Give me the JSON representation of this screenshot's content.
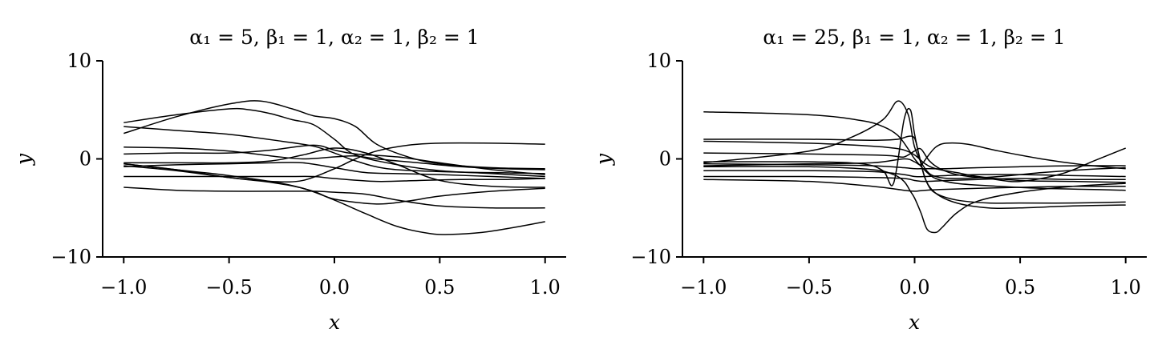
{
  "chart_data": [
    {
      "type": "line",
      "title": "α₁ = 5,  β₁ = 1,  α₂ = 1,  β₂ = 1",
      "xlabel": "x",
      "ylabel": "y",
      "xlim": [
        -1.1,
        1.1
      ],
      "ylim": [
        -10,
        10
      ],
      "xticks": [
        -1.0,
        -0.5,
        0.0,
        0.5,
        1.0
      ],
      "xtick_labels": [
        "−1.0",
        "−0.5",
        "0.0",
        "0.5",
        "1.0"
      ],
      "yticks": [
        -10,
        0,
        10
      ],
      "ytick_labels": [
        "−10",
        "0",
        "10"
      ],
      "line_color": "#000000",
      "series": [
        {
          "x": [
            -1.0,
            -0.75,
            -0.5,
            -0.4,
            -0.3,
            -0.2,
            -0.1,
            0.0,
            0.1,
            0.3,
            0.5,
            0.75,
            1.0
          ],
          "y": [
            3.7,
            4.5,
            5.1,
            5.0,
            4.6,
            4.0,
            3.5,
            2.0,
            0.4,
            -0.6,
            -1.2,
            -1.5,
            -1.8
          ]
        },
        {
          "x": [
            -1.0,
            -0.75,
            -0.5,
            -0.35,
            -0.2,
            -0.1,
            0.0,
            0.1,
            0.2,
            0.35,
            0.5,
            0.75,
            1.0
          ],
          "y": [
            2.6,
            4.3,
            5.6,
            5.9,
            5.1,
            4.4,
            4.1,
            3.3,
            1.5,
            0.2,
            -0.5,
            -0.9,
            -1.0
          ]
        },
        {
          "x": [
            -1.0,
            -0.75,
            -0.5,
            -0.25,
            -0.1,
            0.0,
            0.1,
            0.25,
            0.5,
            0.75,
            1.0
          ],
          "y": [
            3.3,
            2.9,
            2.5,
            1.8,
            1.3,
            0.6,
            -0.2,
            -1.0,
            -1.3,
            -1.4,
            -1.5
          ]
        },
        {
          "x": [
            -1.0,
            -0.75,
            -0.5,
            -0.3,
            -0.15,
            0.0,
            0.1,
            0.2,
            0.4,
            0.6,
            0.8,
            1.0
          ],
          "y": [
            1.2,
            1.1,
            0.8,
            0.3,
            0.0,
            0.2,
            0.3,
            0.0,
            -0.4,
            -0.8,
            -1.0,
            -1.1
          ]
        },
        {
          "x": [
            -1.0,
            -0.75,
            -0.5,
            -0.3,
            -0.1,
            0.0,
            0.1,
            0.3,
            0.5,
            0.75,
            1.0
          ],
          "y": [
            0.5,
            0.6,
            0.6,
            0.9,
            1.4,
            0.9,
            0.5,
            0.2,
            -0.4,
            -1.1,
            -1.6
          ]
        },
        {
          "x": [
            -1.0,
            -0.75,
            -0.5,
            -0.3,
            -0.15,
            0.0,
            0.15,
            0.3,
            0.5,
            0.75,
            1.0
          ],
          "y": [
            -0.4,
            -0.4,
            -0.4,
            -0.2,
            0.4,
            1.1,
            0.6,
            -0.6,
            -2.2,
            -2.8,
            -2.9
          ]
        },
        {
          "x": [
            -1.0,
            -0.75,
            -0.5,
            -0.3,
            -0.15,
            0.0,
            0.15,
            0.3,
            0.5,
            0.75,
            1.0
          ],
          "y": [
            -0.8,
            -0.6,
            -0.5,
            -0.4,
            -0.4,
            -0.9,
            -1.4,
            -1.5,
            -1.6,
            -1.8,
            -2.0
          ]
        },
        {
          "x": [
            -1.0,
            -0.75,
            -0.5,
            -0.3,
            -0.15,
            0.0,
            0.1,
            0.2,
            0.35,
            0.5,
            0.75,
            1.0
          ],
          "y": [
            -0.7,
            -1.2,
            -1.9,
            -2.3,
            -2.2,
            -1.0,
            0.0,
            0.8,
            1.4,
            1.6,
            1.6,
            1.5
          ]
        },
        {
          "x": [
            -1.0,
            -0.75,
            -0.5,
            -0.25,
            -0.1,
            0.0,
            0.2,
            0.4,
            0.6,
            0.8,
            1.0
          ],
          "y": [
            -1.8,
            -1.8,
            -1.8,
            -1.8,
            -1.8,
            -2.0,
            -2.3,
            -2.2,
            -2.1,
            -2.1,
            -2.0
          ]
        },
        {
          "x": [
            -1.0,
            -0.75,
            -0.5,
            -0.25,
            -0.1,
            0.0,
            0.2,
            0.35,
            0.5,
            0.75,
            1.0
          ],
          "y": [
            -0.5,
            -1.1,
            -1.7,
            -2.5,
            -3.3,
            -4.1,
            -4.6,
            -4.3,
            -3.8,
            -3.3,
            -3.0
          ]
        },
        {
          "x": [
            -1.0,
            -0.75,
            -0.5,
            -0.25,
            -0.1,
            0.0,
            0.15,
            0.3,
            0.5,
            0.75,
            1.0
          ],
          "y": [
            -2.9,
            -3.2,
            -3.3,
            -3.3,
            -3.3,
            -3.4,
            -3.6,
            -4.2,
            -4.8,
            -5.0,
            -5.0
          ]
        },
        {
          "x": [
            -1.0,
            -0.75,
            -0.5,
            -0.3,
            -0.15,
            0.0,
            0.15,
            0.3,
            0.45,
            0.55,
            0.7,
            0.85,
            1.0
          ],
          "y": [
            -0.5,
            -1.1,
            -1.9,
            -2.4,
            -3.0,
            -4.2,
            -5.6,
            -6.9,
            -7.6,
            -7.7,
            -7.5,
            -7.0,
            -6.4
          ]
        }
      ]
    },
    {
      "type": "line",
      "title": "α₁ = 25,  β₁ = 1,  α₂ = 1,  β₂ = 1",
      "xlabel": "x",
      "ylabel": "y",
      "xlim": [
        -1.1,
        1.1
      ],
      "ylim": [
        -10,
        10
      ],
      "xticks": [
        -1.0,
        -0.5,
        0.0,
        0.5,
        1.0
      ],
      "xtick_labels": [
        "−1.0",
        "−0.5",
        "0.0",
        "0.5",
        "1.0"
      ],
      "yticks": [
        -10,
        0,
        10
      ],
      "ytick_labels": [
        "−10",
        "0",
        "10"
      ],
      "line_color": "#000000",
      "series": [
        {
          "x": [
            -1.0,
            -0.5,
            -0.25,
            -0.15,
            -0.08,
            -0.03,
            0.0,
            0.05,
            0.1,
            0.2,
            0.4,
            0.6,
            0.8,
            1.0
          ],
          "y": [
            4.8,
            4.5,
            3.9,
            3.3,
            2.4,
            1.0,
            0.0,
            -1.2,
            -2.0,
            -2.5,
            -2.8,
            -3.0,
            -3.1,
            -3.2
          ]
        },
        {
          "x": [
            -1.0,
            -0.5,
            -0.3,
            -0.15,
            -0.08,
            -0.03,
            0.0,
            0.05,
            0.1,
            0.2,
            0.4,
            0.6,
            0.8,
            1.0
          ],
          "y": [
            -0.4,
            0.8,
            2.2,
            4.0,
            5.9,
            4.5,
            1.2,
            -1.0,
            -1.8,
            -2.0,
            -1.8,
            -1.4,
            -1.1,
            -0.9
          ]
        },
        {
          "x": [
            -1.0,
            -0.5,
            -0.25,
            -0.15,
            -0.1,
            -0.05,
            -0.02,
            0.0,
            0.03,
            0.06,
            0.1,
            0.2,
            0.35,
            0.5,
            0.75,
            1.0
          ],
          "y": [
            -0.3,
            -0.3,
            -0.5,
            -1.2,
            -2.5,
            4.0,
            5.0,
            2.5,
            -0.5,
            -2.5,
            -3.5,
            -4.2,
            -4.5,
            -4.5,
            -4.5,
            -4.4
          ]
        },
        {
          "x": [
            -1.0,
            -0.5,
            -0.2,
            -0.08,
            -0.03,
            0.0,
            0.02,
            0.05,
            0.1,
            0.2,
            0.35,
            0.5,
            0.75,
            1.0
          ],
          "y": [
            2.0,
            2.0,
            1.9,
            2.0,
            2.3,
            2.1,
            0.5,
            -2.0,
            -3.5,
            -4.5,
            -5.0,
            -5.0,
            -4.8,
            -4.7
          ]
        },
        {
          "x": [
            -1.0,
            -0.5,
            -0.2,
            -0.1,
            -0.05,
            0.0,
            0.05,
            0.1,
            0.2,
            0.3,
            0.5,
            0.75,
            1.0
          ],
          "y": [
            1.8,
            1.6,
            1.3,
            1.1,
            0.9,
            0.4,
            -0.5,
            -1.0,
            -1.4,
            -1.8,
            -2.2,
            -2.3,
            -2.4
          ]
        },
        {
          "x": [
            -1.0,
            -0.5,
            -0.2,
            -0.1,
            -0.05,
            0.0,
            0.03,
            0.07,
            0.12,
            0.2,
            0.35,
            0.5,
            0.7,
            0.85,
            1.0
          ],
          "y": [
            0.6,
            0.5,
            0.4,
            0.3,
            0.2,
            0.8,
            1.0,
            -0.2,
            -1.0,
            -1.6,
            -2.0,
            -2.3,
            -1.5,
            -0.2,
            1.1
          ]
        },
        {
          "x": [
            -1.0,
            -0.5,
            -0.2,
            -0.05,
            0.0,
            0.03,
            0.06,
            0.1,
            0.15,
            0.25,
            0.4,
            0.6,
            0.8,
            1.0
          ],
          "y": [
            -0.7,
            -0.5,
            -0.4,
            0.0,
            -0.3,
            -0.6,
            0.2,
            1.2,
            1.6,
            1.5,
            0.8,
            0.0,
            -0.6,
            -1.0
          ]
        },
        {
          "x": [
            -1.0,
            -0.5,
            -0.2,
            -0.1,
            -0.05,
            -0.02,
            0.0,
            0.03,
            0.06,
            0.1,
            0.13,
            0.2,
            0.3,
            0.5,
            0.75,
            1.0
          ],
          "y": [
            -0.8,
            -0.8,
            -1.1,
            -1.6,
            -2.3,
            -3.3,
            -4.0,
            -5.5,
            -7.2,
            -7.5,
            -7.0,
            -5.5,
            -4.3,
            -3.4,
            -2.8,
            -2.5
          ]
        },
        {
          "x": [
            -1.0,
            -0.5,
            -0.2,
            -0.05,
            0.0,
            0.05,
            0.15,
            0.3,
            0.5,
            0.75,
            1.0
          ],
          "y": [
            -1.2,
            -1.2,
            -1.3,
            -1.6,
            -1.8,
            -1.8,
            -1.7,
            -1.6,
            -1.6,
            -1.7,
            -1.8
          ]
        },
        {
          "x": [
            -1.0,
            -0.5,
            -0.2,
            -0.05,
            0.0,
            0.05,
            0.15,
            0.3,
            0.5,
            0.75,
            1.0
          ],
          "y": [
            -1.8,
            -1.8,
            -1.9,
            -2.0,
            -2.2,
            -2.3,
            -2.2,
            -2.1,
            -2.0,
            -2.1,
            -2.1
          ]
        },
        {
          "x": [
            -1.0,
            -0.5,
            -0.2,
            -0.05,
            0.0,
            0.05,
            0.15,
            0.3,
            0.5,
            0.75,
            1.0
          ],
          "y": [
            -2.1,
            -2.3,
            -2.8,
            -3.2,
            -3.3,
            -3.2,
            -3.1,
            -3.0,
            -2.9,
            -2.8,
            -2.8
          ]
        },
        {
          "x": [
            -1.0,
            -0.5,
            -0.2,
            -0.05,
            0.0,
            0.05,
            0.15,
            0.3,
            0.5,
            0.75,
            1.0
          ],
          "y": [
            -0.5,
            -0.6,
            -0.7,
            -0.9,
            -1.0,
            -1.0,
            -1.0,
            -0.9,
            -0.8,
            -0.7,
            -0.7
          ]
        }
      ]
    }
  ]
}
